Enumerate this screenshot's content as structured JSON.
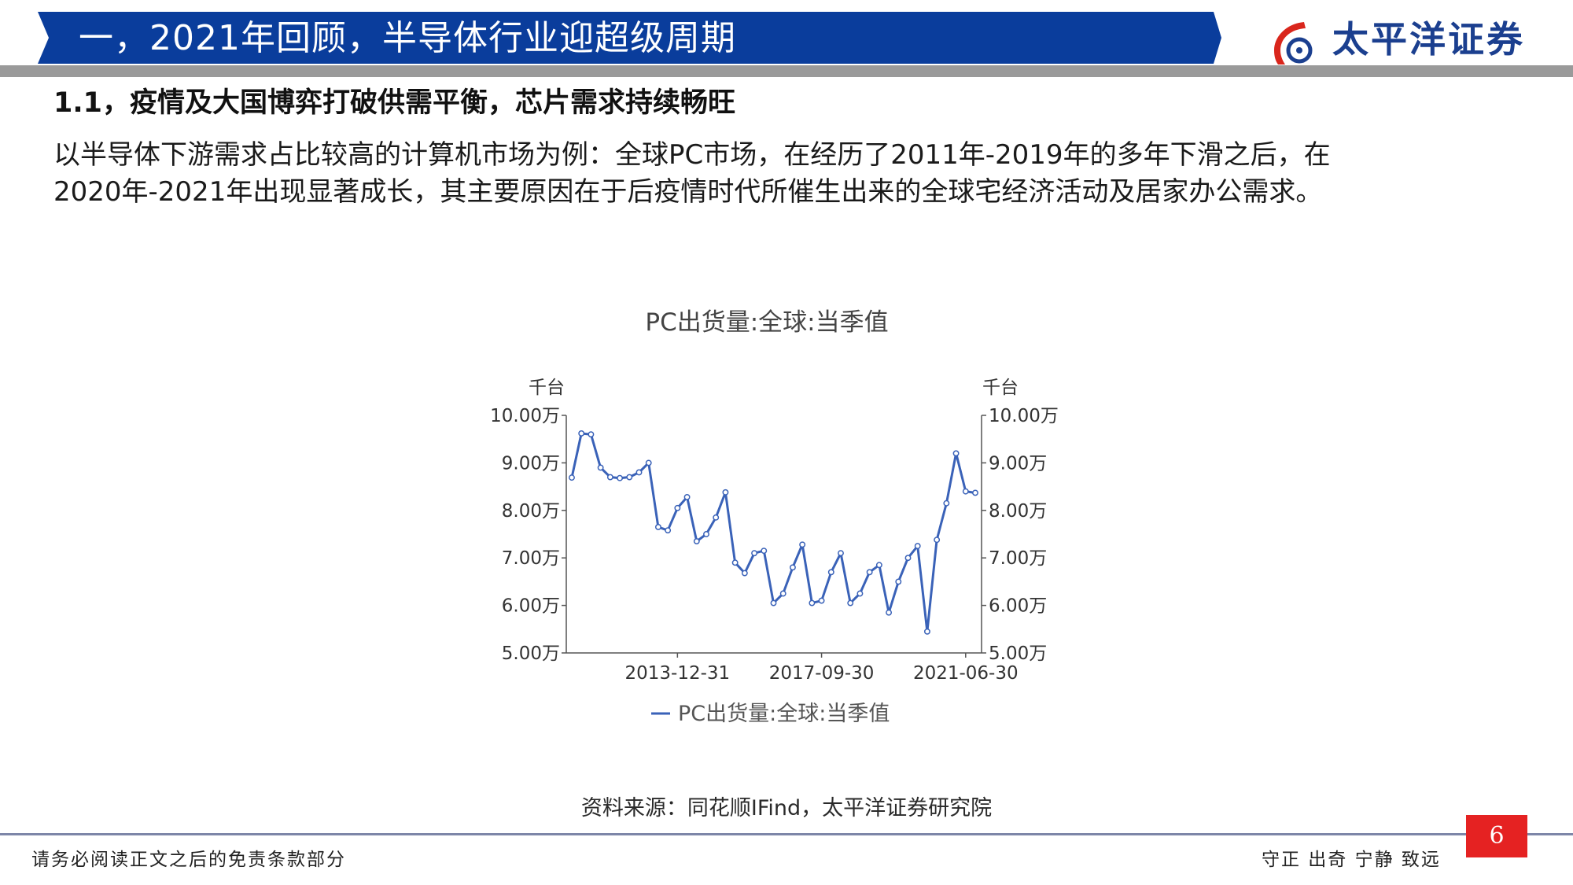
{
  "header": {
    "title": "一，2021年回顾，半导体行业迎超级周期",
    "banner_color": "#0a3d9c",
    "logo_text": "太平洋证券",
    "logo_color": "#1b3f8f",
    "logo_accent": "#d9261c"
  },
  "section": {
    "subtitle": "1.1，疫情及大国博弈打破供需平衡，芯片需求持续畅旺",
    "paragraph_line1": "以半导体下游需求占比较高的计算机市场为例：全球PC市场，在经历了2011年-2019年的多年下滑之后，在",
    "paragraph_line2": "2020年-2021年出现显著成长，其主要原因在于后疫情时代所催生出来的全球宅经济活动及居家办公需求。"
  },
  "chart_data": {
    "type": "line",
    "title": "PC出货量:全球:当季值",
    "left_unit": "千台",
    "right_unit": "千台",
    "y_ticks": [
      "10.00万",
      "9.00万",
      "8.00万",
      "7.00万",
      "6.00万",
      "5.00万"
    ],
    "ylim": [
      50000,
      100000
    ],
    "x_ticks": [
      "2013-12-31",
      "2017-09-30",
      "2021-06-30"
    ],
    "line_color": "#3a62b8",
    "series": [
      {
        "name": "PC出货量:全球:当季值",
        "values": [
          86900,
          96200,
          96000,
          89000,
          87000,
          86800,
          87000,
          88000,
          90000,
          76500,
          75800,
          80500,
          82800,
          73500,
          75000,
          78500,
          83800,
          69000,
          66800,
          71000,
          71500,
          60500,
          62500,
          68000,
          72800,
          60500,
          61000,
          67000,
          71000,
          60500,
          62500,
          67000,
          68500,
          58500,
          65000,
          70000,
          72500,
          54500,
          73800,
          81500,
          92000,
          84000,
          83700
        ]
      }
    ]
  },
  "source": "资料来源：同花顺IFind，太平洋证券研究院",
  "footer": {
    "disclaimer": "请务必阅读正文之后的免责条款部分",
    "page_number": "6",
    "motto": "守正 出奇 宁静 致远",
    "badge_color": "#e52222"
  }
}
